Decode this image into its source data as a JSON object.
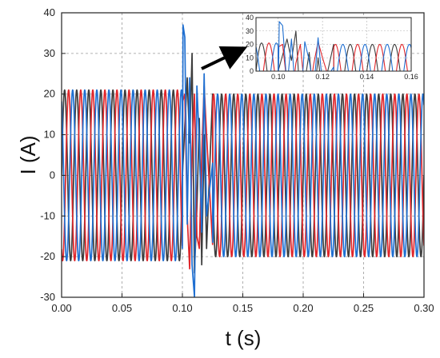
{
  "chart_data": {
    "type": "line",
    "title": "",
    "xlabel": "t (s)",
    "ylabel": "I (A)",
    "xlim": [
      0,
      0.3
    ],
    "ylim": [
      -30,
      40
    ],
    "x_ticks": [
      "0.00",
      "0.05",
      "0.10",
      "0.15",
      "0.20",
      "0.25",
      "0.30"
    ],
    "y_ticks": [
      "-30",
      "-20",
      "-10",
      "0",
      "10",
      "20",
      "30",
      "40"
    ],
    "grid": "dashed",
    "legend": "none",
    "frequency_hz": 100,
    "series": [
      {
        "color": "#3d3d3d",
        "phase_deg": 0,
        "points": [
          [
            0.0,
            0
          ],
          [
            0.0025,
            21
          ],
          [
            0.005,
            0
          ],
          [
            0.0075,
            -21
          ],
          [
            0.01,
            0
          ],
          [
            0.05,
            0
          ],
          [
            0.09,
            0
          ],
          [
            0.1,
            0
          ],
          [
            0.102,
            12
          ],
          [
            0.104,
            24
          ],
          [
            0.106,
            8
          ],
          [
            0.108,
            30
          ],
          [
            0.11,
            -24
          ],
          [
            0.112,
            -8
          ],
          [
            0.114,
            14
          ],
          [
            0.116,
            -22
          ],
          [
            0.118,
            10
          ],
          [
            0.12,
            -18
          ],
          [
            0.125,
            20
          ],
          [
            0.13,
            0
          ],
          [
            0.15,
            0
          ],
          [
            0.2,
            0
          ],
          [
            0.25,
            0
          ],
          [
            0.3,
            0
          ]
        ]
      },
      {
        "color": "#e0262b",
        "phase_deg": 120,
        "points": [
          [
            0.0,
            18
          ],
          [
            0.0025,
            -10
          ],
          [
            0.005,
            -18
          ],
          [
            0.0075,
            10
          ],
          [
            0.01,
            18
          ],
          [
            0.05,
            18
          ],
          [
            0.09,
            18
          ],
          [
            0.1,
            18
          ],
          [
            0.102,
            20
          ],
          [
            0.104,
            -10
          ],
          [
            0.106,
            -23
          ],
          [
            0.108,
            6
          ],
          [
            0.11,
            20
          ],
          [
            0.112,
            -15
          ],
          [
            0.114,
            -18
          ],
          [
            0.116,
            5
          ],
          [
            0.118,
            22
          ],
          [
            0.12,
            10
          ],
          [
            0.125,
            -17
          ],
          [
            0.13,
            17
          ],
          [
            0.15,
            17
          ],
          [
            0.2,
            17
          ],
          [
            0.25,
            17
          ],
          [
            0.3,
            17
          ]
        ]
      },
      {
        "color": "#1f6fd1",
        "phase_deg": 240,
        "points": [
          [
            0.0,
            -18
          ],
          [
            0.0025,
            -10
          ],
          [
            0.005,
            18
          ],
          [
            0.0075,
            10
          ],
          [
            0.01,
            -18
          ],
          [
            0.05,
            -18
          ],
          [
            0.09,
            -18
          ],
          [
            0.1,
            -18
          ],
          [
            0.1005,
            37
          ],
          [
            0.102,
            34
          ],
          [
            0.104,
            -12
          ],
          [
            0.106,
            24
          ],
          [
            0.108,
            -22
          ],
          [
            0.11,
            -30
          ],
          [
            0.112,
            22
          ],
          [
            0.114,
            8
          ],
          [
            0.116,
            -14
          ],
          [
            0.118,
            25
          ],
          [
            0.12,
            -10
          ],
          [
            0.125,
            3
          ],
          [
            0.13,
            -17
          ],
          [
            0.15,
            -17
          ],
          [
            0.2,
            -17
          ],
          [
            0.25,
            -17
          ],
          [
            0.3,
            -17
          ]
        ]
      }
    ],
    "inset": {
      "xlim": [
        0.09,
        0.16
      ],
      "ylim": [
        0,
        40
      ],
      "x_ticks": [
        "0.10",
        "0.12",
        "0.14",
        "0.16"
      ],
      "y_ticks": [
        "0",
        "10",
        "20",
        "30",
        "40"
      ]
    }
  }
}
